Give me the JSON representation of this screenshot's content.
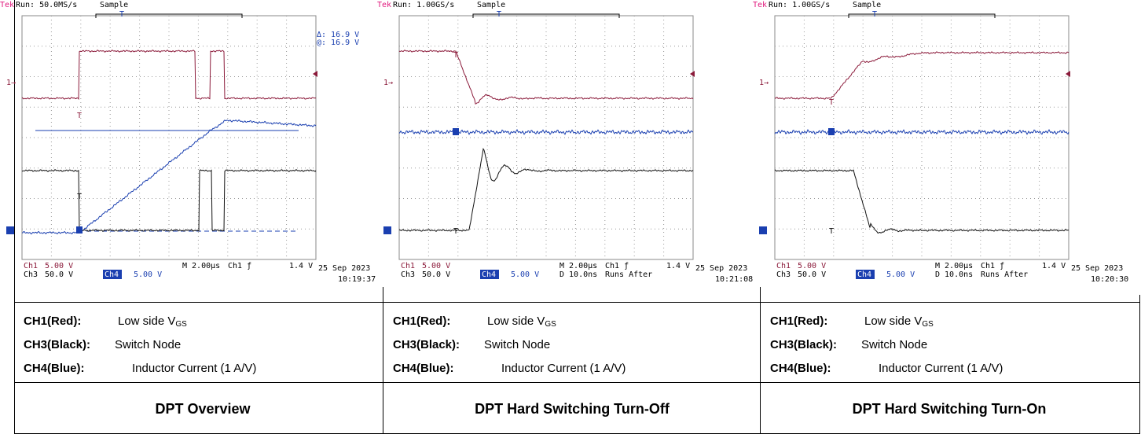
{
  "panels": [
    {
      "scope": {
        "brand": "Tek",
        "status": "Run: 50.0MS/s",
        "mode": "Sample",
        "trigger_marker": "T",
        "ch1_marker": "1→",
        "cursor": [
          "Δ: 16.9 V",
          "@: 16.9 V"
        ],
        "readout": {
          "ch1": "Ch1",
          "ch1_scale": "5.00 V",
          "ch3": "Ch3",
          "ch3_scale": "50.0 V",
          "ch4": "Ch4",
          "ch4_scale": "5.00 V",
          "timebase": "M 2.00µs",
          "trigger": "Ch1 ƒ",
          "trigger_level": "1.4 V",
          "date": "25 Sep 2023",
          "time": "10:19:37"
        }
      },
      "legend": [
        {
          "label": "CH1(Red):",
          "text": "Low side V",
          "sub": "GS"
        },
        {
          "label": "CH3(Black):",
          "text": "Switch Node"
        },
        {
          "label": "CH4(Blue):",
          "text": "Inductor Current (1 A/V)"
        }
      ],
      "caption": "DPT Overview"
    },
    {
      "scope": {
        "brand": "Tek",
        "status": "Run: 1.00GS/s",
        "mode": "Sample",
        "trigger_marker": "T",
        "ch1_marker": "1→",
        "readout": {
          "ch1": "Ch1",
          "ch1_scale": "5.00 V",
          "ch3": "Ch3",
          "ch3_scale": "50.0 V",
          "ch4": "Ch4",
          "ch4_scale": "5.00 V",
          "timebase": "M 2.00µs",
          "trigger": "Ch1 ƒ",
          "trigger_level": "1.4 V",
          "delay": "D 10.0ns",
          "run_mode": "Runs After",
          "date": "25 Sep 2023",
          "time": "10:21:08"
        }
      },
      "legend": [
        {
          "label": "CH1(Red):",
          "text": "Low side V",
          "sub": "GS"
        },
        {
          "label": "CH3(Black):",
          "text": "Switch Node"
        },
        {
          "label": "CH4(Blue):",
          "text": "Inductor Current (1 A/V)"
        }
      ],
      "caption": "DPT Hard Switching Turn-Off"
    },
    {
      "scope": {
        "brand": "Tek",
        "status": "Run: 1.00GS/s",
        "mode": "Sample",
        "trigger_marker": "T",
        "ch1_marker": "1→",
        "readout": {
          "ch1": "Ch1",
          "ch1_scale": "5.00 V",
          "ch3": "Ch3",
          "ch3_scale": "50.0 V",
          "ch4": "Ch4",
          "ch4_scale": "5.00 V",
          "timebase": "M 2.00µs",
          "trigger": "Ch1 ƒ",
          "trigger_level": "1.4 V",
          "delay": "D 10.0ns",
          "run_mode": "Runs After",
          "date": "25 Sep 2023",
          "time": "10:20:30"
        }
      },
      "legend": [
        {
          "label": "CH1(Red):",
          "text": "Low side V",
          "sub": "GS"
        },
        {
          "label": "CH3(Black):",
          "text": "Switch Node"
        },
        {
          "label": "CH4(Blue):",
          "text": "Inductor Current (1 A/V)"
        }
      ],
      "caption": "DPT Hard Switching Turn-On"
    }
  ]
}
